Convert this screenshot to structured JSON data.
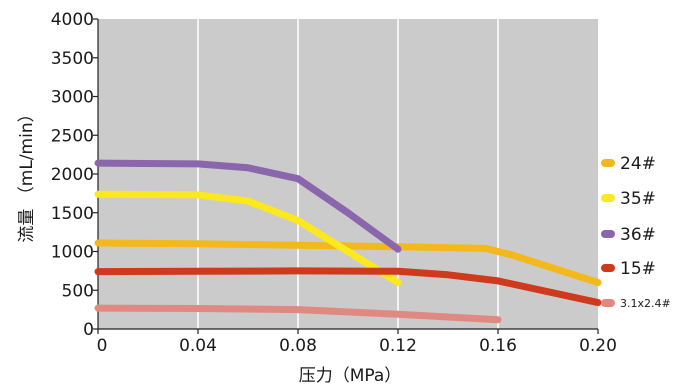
{
  "chart_data": {
    "type": "line",
    "xlabel": "压力（MPa）",
    "ylabel": "流量 （mL/min）",
    "xlim": [
      0,
      0.2
    ],
    "ylim": [
      0,
      4000
    ],
    "x_ticks": [
      "0",
      "0.04",
      "0.08",
      "0.12",
      "0.16",
      "0.20"
    ],
    "x_tick_values": [
      0,
      0.04,
      0.08,
      0.12,
      0.16,
      0.2
    ],
    "y_ticks": [
      "0",
      "500",
      "1000",
      "1500",
      "2000",
      "2500",
      "3000",
      "3500",
      "4000"
    ],
    "y_tick_values": [
      0,
      500,
      1000,
      1500,
      2000,
      2500,
      3000,
      3500,
      4000
    ],
    "grid": "vertical",
    "background": "#cbcbcb",
    "legend_position": "right",
    "series": [
      {
        "name": "24#",
        "color": "#f3b81b",
        "points": [
          [
            0,
            1110
          ],
          [
            0.04,
            1100
          ],
          [
            0.08,
            1080
          ],
          [
            0.12,
            1060
          ],
          [
            0.155,
            1040
          ],
          [
            0.165,
            960
          ],
          [
            0.2,
            600
          ]
        ]
      },
      {
        "name": "35#",
        "color": "#fbe81e",
        "points": [
          [
            0,
            1740
          ],
          [
            0.04,
            1730
          ],
          [
            0.06,
            1650
          ],
          [
            0.08,
            1400
          ],
          [
            0.1,
            1000
          ],
          [
            0.12,
            600
          ]
        ]
      },
      {
        "name": "36#",
        "color": "#8a66ad",
        "points": [
          [
            0,
            2140
          ],
          [
            0.04,
            2130
          ],
          [
            0.06,
            2080
          ],
          [
            0.08,
            1940
          ],
          [
            0.1,
            1500
          ],
          [
            0.12,
            1030
          ]
        ]
      },
      {
        "name": "15#",
        "color": "#cf3a1c",
        "points": [
          [
            0,
            740
          ],
          [
            0.04,
            745
          ],
          [
            0.08,
            750
          ],
          [
            0.12,
            745
          ],
          [
            0.14,
            700
          ],
          [
            0.16,
            620
          ],
          [
            0.2,
            340
          ]
        ]
      },
      {
        "name": "3.1x2.4#",
        "color": "#e08982",
        "points": [
          [
            0,
            270
          ],
          [
            0.04,
            265
          ],
          [
            0.08,
            250
          ],
          [
            0.12,
            190
          ],
          [
            0.16,
            120
          ]
        ]
      }
    ]
  }
}
